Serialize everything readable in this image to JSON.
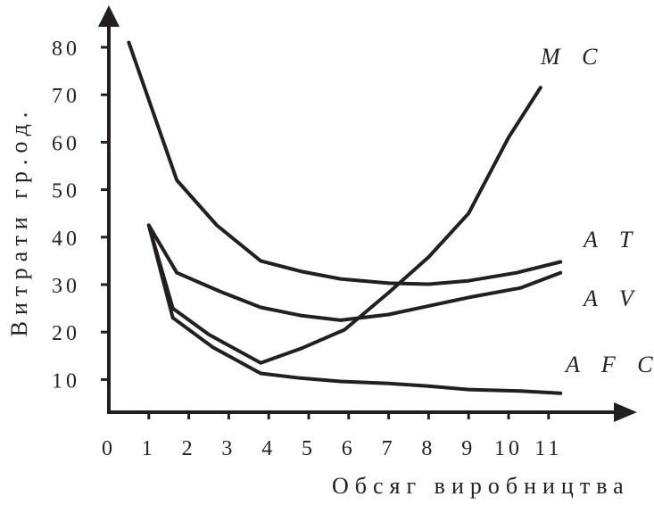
{
  "chart_data": {
    "type": "line",
    "title": "",
    "xlabel": "Обсяг виробництва",
    "ylabel": "Витрати гр.од.",
    "xlim": [
      0,
      12
    ],
    "ylim": [
      0,
      90
    ],
    "x_ticks": [
      "0",
      "1",
      "2",
      "3",
      "4",
      "5",
      "6",
      "7",
      "8",
      "9",
      "10",
      "11"
    ],
    "y_ticks": [
      "10",
      "20",
      "30",
      "40",
      "50",
      "60",
      "70",
      "80"
    ],
    "grid": false,
    "legend": "inline labels at right end of curves",
    "series": [
      {
        "name": "MC",
        "points": [
          [
            0.5,
            81
          ],
          [
            1.7,
            52
          ],
          [
            2.7,
            42.5
          ],
          [
            3.8,
            35
          ],
          [
            4.8,
            32.8
          ],
          [
            5.8,
            31.2
          ],
          [
            7.0,
            30.3
          ],
          [
            8.0,
            30.1
          ],
          [
            9.0,
            30.8
          ],
          [
            10.2,
            32.5
          ],
          [
            11.3,
            34.8
          ]
        ],
        "label_series_note": ""
      },
      {
        "name": "ATC",
        "points": [
          [
            1.0,
            42.5
          ],
          [
            1.6,
            25
          ],
          [
            2.5,
            19.5
          ],
          [
            3.8,
            13.5
          ],
          [
            4.8,
            16.5
          ],
          [
            5.9,
            20.5
          ],
          [
            7.0,
            28.3
          ],
          [
            8.0,
            35.8
          ],
          [
            9.0,
            45
          ],
          [
            10.0,
            61
          ],
          [
            10.8,
            71.5
          ]
        ]
      },
      {
        "name": "AVC",
        "points": [
          [
            1.0,
            42.5
          ],
          [
            1.7,
            32.5
          ],
          [
            2.8,
            28.5
          ],
          [
            3.8,
            25.2
          ],
          [
            4.8,
            23.5
          ],
          [
            5.8,
            22.5
          ],
          [
            7.0,
            23.7
          ],
          [
            8.0,
            25.5
          ],
          [
            9.0,
            27.3
          ],
          [
            10.3,
            29.3
          ],
          [
            11.3,
            32.5
          ]
        ]
      },
      {
        "name": "AFC",
        "points": [
          [
            1.0,
            42.5
          ],
          [
            1.6,
            23
          ],
          [
            2.6,
            16.8
          ],
          [
            3.8,
            11.3
          ],
          [
            4.8,
            10.3
          ],
          [
            5.8,
            9.6
          ],
          [
            7.0,
            9.2
          ],
          [
            8.0,
            8.6
          ],
          [
            9.0,
            7.9
          ],
          [
            10.3,
            7.6
          ],
          [
            11.3,
            7.1
          ]
        ]
      }
    ],
    "labels": [
      {
        "text": "M C",
        "series": "MC"
      },
      {
        "text": "A T C",
        "series": "ATC"
      },
      {
        "text": "A V C",
        "series": "AVC"
      },
      {
        "text": "A F C",
        "series": "AFC"
      }
    ],
    "color": "#231f20"
  }
}
